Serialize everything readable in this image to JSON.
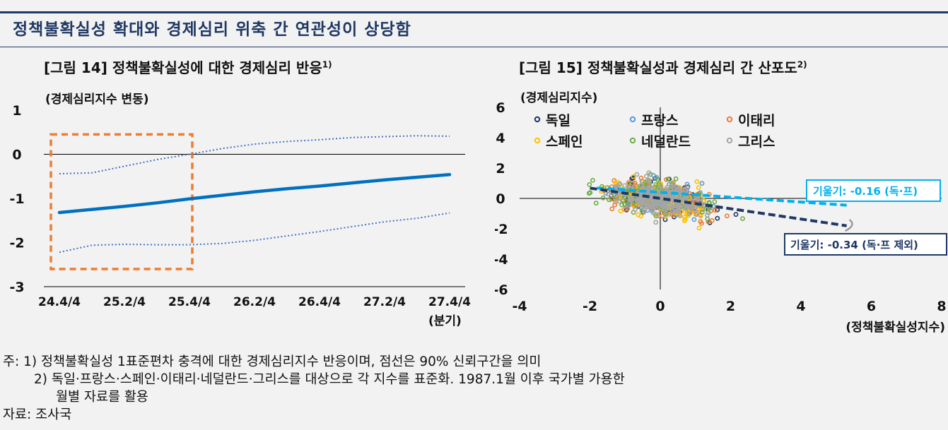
{
  "header": {
    "title": "정책불확실성 확대와 경제심리 위축 간 연관성이 상당함"
  },
  "figure14": {
    "title": "[그림 14] 정책불확실성에 대한 경제심리 반응",
    "title_sup": "1)",
    "ylabel": "(경제심리지수 변동)",
    "xlabel": "(분기)",
    "colors": {
      "main": "#0070c0",
      "band": "#4472c4",
      "box": "#ed7d31"
    },
    "chart_data": {
      "type": "line",
      "x": [
        "24.4/4",
        "25.1/4",
        "25.2/4",
        "25.3/4",
        "25.4/4",
        "26.1/4",
        "26.2/4",
        "26.3/4",
        "26.4/4",
        "27.1/4",
        "27.2/4",
        "27.3/4",
        "27.4/4"
      ],
      "xticks": [
        "24.4/4",
        "25.2/4",
        "25.4/4",
        "26.2/4",
        "26.4/4",
        "27.2/4",
        "27.4/4"
      ],
      "ylim": [
        -3,
        1
      ],
      "yticks": [
        1,
        0,
        -1,
        -2,
        -3
      ],
      "series": [
        {
          "role": "estimate",
          "values": [
            -1.32,
            -1.25,
            -1.18,
            -1.1,
            -1.01,
            -0.93,
            -0.85,
            -0.78,
            -0.72,
            -0.65,
            -0.58,
            -0.52,
            -0.46
          ]
        },
        {
          "role": "upper",
          "values": [
            -0.44,
            -0.42,
            -0.27,
            -0.12,
            0.0,
            0.13,
            0.23,
            0.29,
            0.33,
            0.38,
            0.4,
            0.42,
            0.41
          ]
        },
        {
          "role": "lower",
          "values": [
            -2.22,
            -2.06,
            -2.04,
            -2.05,
            -2.05,
            -2.02,
            -1.95,
            -1.85,
            -1.75,
            -1.64,
            -1.53,
            -1.45,
            -1.33
          ]
        }
      ],
      "highlight_range": [
        "24.4/4",
        "25.4/4"
      ]
    }
  },
  "figure15": {
    "title": "[그림 15] 정책불확실성과 경제심리 간 산포도",
    "title_sup": "2)",
    "ylabel": "(경제심리지수)",
    "xlabel": "(정책불확실성지수)",
    "chart_data": {
      "type": "scatter",
      "xlim": [
        -4,
        8
      ],
      "ylim": [
        -6,
        6
      ],
      "xticks": [
        -4,
        -2,
        0,
        2,
        4,
        6,
        8
      ],
      "yticks": [
        6,
        4,
        2,
        0,
        -2,
        -4,
        -6
      ],
      "legend": [
        {
          "name": "독일",
          "color": "#1f3864"
        },
        {
          "name": "프랑스",
          "color": "#5b9bd5"
        },
        {
          "name": "이태리",
          "color": "#ed7d31"
        },
        {
          "name": "스페인",
          "color": "#ffc000"
        },
        {
          "name": "네덜란드",
          "color": "#70ad47"
        },
        {
          "name": "그리스",
          "color": "#a5a5a5"
        }
      ],
      "fits": [
        {
          "label": "기울기: -0.16 (독·프)",
          "slope": -0.16,
          "x": [
            -1.8,
            5.3
          ],
          "color": "#00b0f0"
        },
        {
          "label": "기울기: -0.34 (독·프 제외)",
          "slope": -0.34,
          "x": [
            -2.0,
            5.3
          ],
          "color": "#1f3864"
        }
      ]
    }
  },
  "notes": {
    "line1": "주: 1) 정책불확실성 1표준편차 충격에 대한 경제심리지수 반응이며, 점선은 90% 신뢰구간을 의미",
    "line2": "2) 독일·프랑스·스페인·이태리·네덜란드·그리스를 대상으로 각 지수를 표준화. 1987.1월 이후 국가별 가용한",
    "line3": "월별 자료를 활용",
    "source": "자료: 조사국"
  }
}
